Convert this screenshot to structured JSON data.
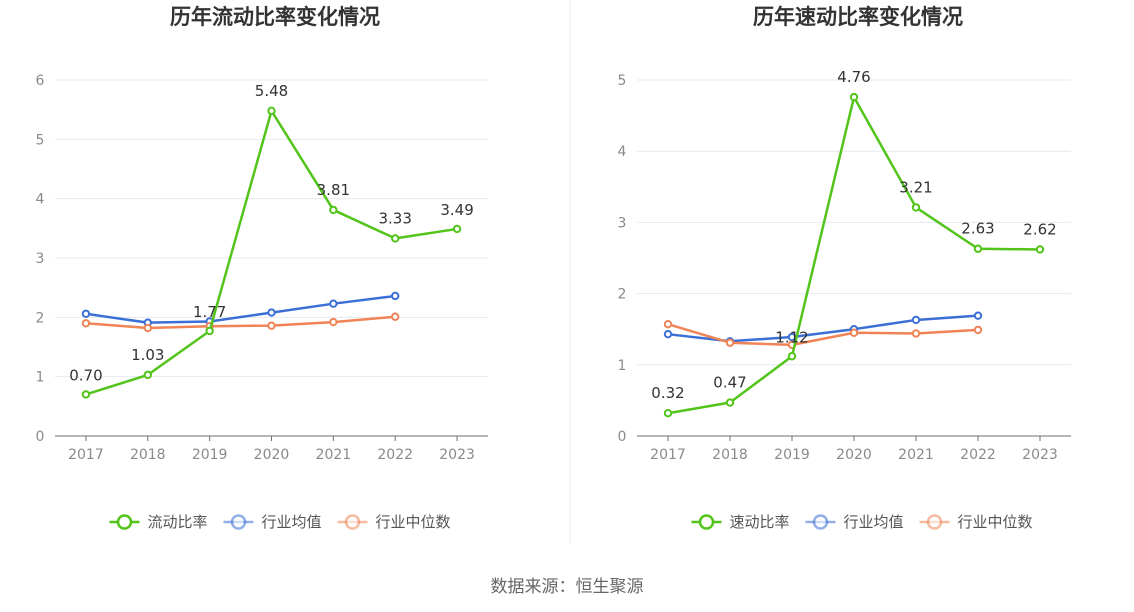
{
  "chart_data": [
    {
      "type": "line",
      "title": "历年流动比率变化情况",
      "categories": [
        "2017",
        "2018",
        "2019",
        "2020",
        "2021",
        "2022",
        "2023"
      ],
      "ylim": [
        0,
        6
      ],
      "yticks": [
        0,
        1,
        2,
        3,
        4,
        5,
        6
      ],
      "grid": true,
      "legend_position": "bottom",
      "series": [
        {
          "name": "流动比率",
          "color": "#52c41a",
          "values": [
            0.7,
            1.03,
            1.77,
            5.48,
            3.81,
            3.33,
            3.49
          ],
          "labels": [
            "0.70",
            "1.03",
            "1.77",
            "5.48",
            "3.81",
            "3.33",
            "3.49"
          ]
        },
        {
          "name": "行业均值",
          "color": "#3b6fd6",
          "values": [
            2.06,
            1.91,
            1.93,
            2.08,
            2.23,
            2.36,
            null
          ]
        },
        {
          "name": "行业中位数",
          "color": "#f08456",
          "values": [
            1.9,
            1.82,
            1.85,
            1.86,
            1.92,
            2.01,
            null
          ]
        }
      ]
    },
    {
      "type": "line",
      "title": "历年速动比率变化情况",
      "categories": [
        "2017",
        "2018",
        "2019",
        "2020",
        "2021",
        "2022",
        "2023"
      ],
      "ylim": [
        0,
        5
      ],
      "yticks": [
        0,
        1,
        2,
        3,
        4,
        5
      ],
      "grid": true,
      "legend_position": "bottom",
      "series": [
        {
          "name": "速动比率",
          "color": "#52c41a",
          "values": [
            0.32,
            0.47,
            1.12,
            4.76,
            3.21,
            2.63,
            2.62
          ],
          "labels": [
            "0.32",
            "0.47",
            "1.12",
            "4.76",
            "3.21",
            "2.63",
            "2.62"
          ]
        },
        {
          "name": "行业均值",
          "color": "#3b6fd6",
          "values": [
            1.43,
            1.33,
            1.39,
            1.5,
            1.63,
            1.69,
            null
          ]
        },
        {
          "name": "行业中位数",
          "color": "#f08456",
          "values": [
            1.57,
            1.31,
            1.28,
            1.45,
            1.44,
            1.49,
            null
          ]
        }
      ]
    }
  ],
  "source_text": "数据来源：恒生聚源"
}
